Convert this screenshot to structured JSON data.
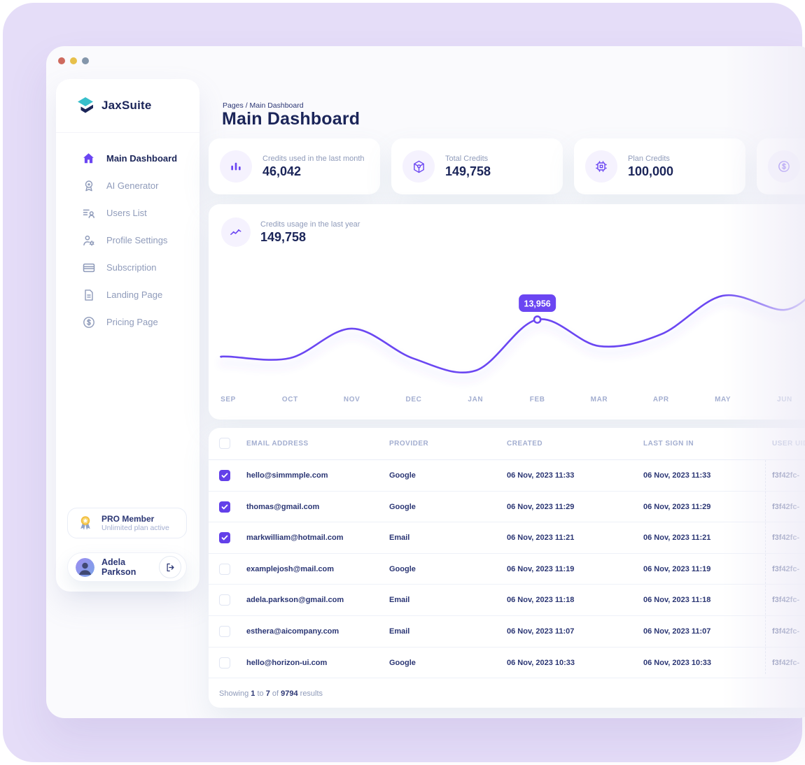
{
  "window": {
    "traffic_lights": [
      {
        "name": "close",
        "color": "#CE6A5E"
      },
      {
        "name": "minimize",
        "color": "#E7C04B"
      },
      {
        "name": "expand",
        "color": "#8496AB"
      }
    ]
  },
  "sidebar": {
    "brand": "JaxSuite",
    "nav": [
      {
        "label": "Main Dashboard",
        "icon": "home-icon",
        "active": true
      },
      {
        "label": "AI Generator",
        "icon": "award-icon",
        "active": false
      },
      {
        "label": "Users List",
        "icon": "users-list-icon",
        "active": false
      },
      {
        "label": "Profile Settings",
        "icon": "profile-settings-icon",
        "active": false
      },
      {
        "label": "Subscription",
        "icon": "card-icon",
        "active": false
      },
      {
        "label": "Landing Page",
        "icon": "document-icon",
        "active": false
      },
      {
        "label": "Pricing Page",
        "icon": "dollar-icon",
        "active": false
      }
    ],
    "pro_card": {
      "icon": "medal-icon",
      "title": "PRO Member",
      "subtitle": "Unlimited plan active"
    },
    "user": {
      "name": "Adela Parkson",
      "action_icon": "logout-icon"
    }
  },
  "header": {
    "breadcrumb": "Pages / Main Dashboard",
    "title": "Main Dashboard"
  },
  "stat_cards": [
    {
      "icon": "bar-chart-icon",
      "label": "Credits used in the last month",
      "value": "46,042"
    },
    {
      "icon": "cube-icon",
      "label": "Total Credits",
      "value": "149,758"
    },
    {
      "icon": "chip-icon",
      "label": "Plan Credits",
      "value": "100,000"
    },
    {
      "icon": "dollar-icon",
      "label": "",
      "value": ""
    }
  ],
  "chart_card": {
    "icon": "trend-icon",
    "label": "Credits usage in the last year",
    "value": "149,758"
  },
  "chart_data": {
    "type": "line",
    "title": "Credits usage in the last year",
    "categories": [
      "SEP",
      "OCT",
      "NOV",
      "DEC",
      "JAN",
      "FEB",
      "MAR",
      "APR",
      "MAY",
      "JUN"
    ],
    "values": [
      12540,
      12480,
      13610,
      12460,
      12000,
      13956,
      12940,
      13390,
      14870,
      14330
    ],
    "values_note": "only FEB is labeled on the chart (13,956); other values estimated from the curve",
    "highlight": {
      "category": "FEB",
      "index": 5,
      "label": "13,956",
      "value": 13956
    },
    "line_color": "#6B46F2",
    "grid": false,
    "legend": false,
    "xlabel": "",
    "ylabel": ""
  },
  "table": {
    "columns": [
      "EMAIL ADDRESS",
      "PROVIDER",
      "CREATED",
      "LAST SIGN IN",
      "USER UID"
    ],
    "rows": [
      {
        "checked": true,
        "email": "hello@simmmple.com",
        "provider": "Google",
        "created": "06 Nov, 2023 11:33",
        "last_sign_in": "06 Nov, 2023 11:33",
        "user_uid": "f3f42fc-"
      },
      {
        "checked": true,
        "email": "thomas@gmail.com",
        "provider": "Google",
        "created": "06 Nov, 2023 11:29",
        "last_sign_in": "06 Nov, 2023 11:29",
        "user_uid": "f3f42fc-"
      },
      {
        "checked": true,
        "email": "markwilliam@hotmail.com",
        "provider": "Email",
        "created": "06 Nov, 2023 11:21",
        "last_sign_in": "06 Nov, 2023 11:21",
        "user_uid": "f3f42fc-"
      },
      {
        "checked": false,
        "email": "examplejosh@mail.com",
        "provider": "Google",
        "created": "06 Nov, 2023 11:19",
        "last_sign_in": "06 Nov, 2023 11:19",
        "user_uid": "f3f42fc-"
      },
      {
        "checked": false,
        "email": "adela.parkson@gmail.com",
        "provider": "Email",
        "created": "06 Nov, 2023 11:18",
        "last_sign_in": "06 Nov, 2023 11:18",
        "user_uid": "f3f42fc-"
      },
      {
        "checked": false,
        "email": "esthera@aicompany.com",
        "provider": "Email",
        "created": "06 Nov, 2023 11:07",
        "last_sign_in": "06 Nov, 2023 11:07",
        "user_uid": "f3f42fc-"
      },
      {
        "checked": false,
        "email": "hello@horizon-ui.com",
        "provider": "Google",
        "created": "06 Nov, 2023 10:33",
        "last_sign_in": "06 Nov, 2023 10:33",
        "user_uid": "f3f42fc-"
      }
    ],
    "footer_parts": [
      {
        "text": "Showing ",
        "bold": false
      },
      {
        "text": "1",
        "bold": true
      },
      {
        "text": " to ",
        "bold": false
      },
      {
        "text": "7",
        "bold": true
      },
      {
        "text": " of ",
        "bold": false
      },
      {
        "text": "9794",
        "bold": true
      },
      {
        "text": " results",
        "bold": false
      }
    ]
  },
  "colors": {
    "accent": "#6B46F2",
    "navy": "#1B2559",
    "navy_mid": "#2B3674",
    "muted": "#8F9BBA",
    "muted_light": "#A3AED0",
    "page_bg": "#E5DDF8",
    "card_bg": "#FFFFFF",
    "divider": "#E9EDF7",
    "checkbox_checked": "#6340E9",
    "tooltip_bg": "#6B46F2",
    "logo_teal": "#38BFCB"
  }
}
